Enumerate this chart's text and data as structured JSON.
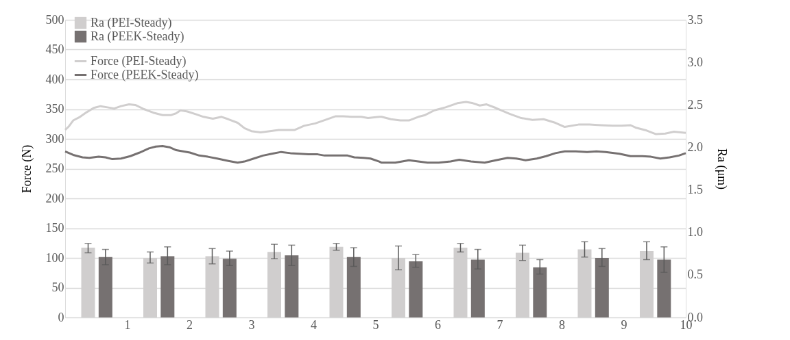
{
  "chart_data": {
    "type": "bar",
    "ylabel": "Force (N)",
    "y2label": "Ra (μm)",
    "xlim": [
      0,
      10
    ],
    "xticks": [
      1,
      2,
      3,
      4,
      5,
      6,
      7,
      8,
      9,
      10
    ],
    "ylim": [
      0,
      500
    ],
    "yticks": [
      0,
      50,
      100,
      150,
      200,
      250,
      300,
      350,
      400,
      450,
      500
    ],
    "y2lim": [
      0,
      3.5
    ],
    "y2ticks": [
      {
        "value": 0,
        "label": "0.0"
      },
      0.5,
      {
        "value": 1,
        "label": "1.0"
      },
      1.5,
      {
        "value": 2,
        "label": "2.0"
      },
      2.5,
      {
        "value": 3,
        "label": "3.0"
      },
      3.5
    ],
    "grid": "y",
    "legend": "top left",
    "series": [
      {
        "name": "Ra (PEI-Steady)",
        "axis": "y2",
        "color": "#d0cece",
        "x": [
          0.37,
          1.37,
          2.37,
          3.37,
          4.37,
          5.37,
          6.37,
          7.37,
          8.37,
          9.37
        ],
        "values": [
          0.82,
          0.7,
          0.72,
          0.77,
          0.83,
          0.7,
          0.82,
          0.76,
          0.8,
          0.78
        ],
        "errors": [
          [
            0.76,
            0.87
          ],
          [
            0.64,
            0.77
          ],
          [
            0.63,
            0.81
          ],
          [
            0.69,
            0.86
          ],
          [
            0.79,
            0.87
          ],
          [
            0.56,
            0.84
          ],
          [
            0.77,
            0.87
          ],
          [
            0.67,
            0.85
          ],
          [
            0.71,
            0.89
          ],
          [
            0.68,
            0.89
          ]
        ]
      },
      {
        "name": "Ra (PEEK-Steady)",
        "axis": "y2",
        "color": "#767171",
        "x": [
          0.65,
          1.65,
          2.65,
          3.65,
          4.65,
          5.65,
          6.65,
          7.65,
          8.65,
          9.65
        ],
        "values": [
          0.71,
          0.72,
          0.69,
          0.73,
          0.71,
          0.66,
          0.68,
          0.59,
          0.7,
          0.68
        ],
        "errors": [
          [
            0.62,
            0.8
          ],
          [
            0.62,
            0.83
          ],
          [
            0.61,
            0.78
          ],
          [
            0.61,
            0.85
          ],
          [
            0.6,
            0.82
          ],
          [
            0.59,
            0.74
          ],
          [
            0.57,
            0.8
          ],
          [
            0.51,
            0.68
          ],
          [
            0.6,
            0.81
          ],
          [
            0.53,
            0.83
          ]
        ]
      },
      {
        "name": "Force (PEI-Steady)",
        "type": "line",
        "color": "#d0cece",
        "x": [
          0,
          0.06,
          0.13,
          0.24,
          0.35,
          0.46,
          0.57,
          0.68,
          0.79,
          0.9,
          1.03,
          1.13,
          1.27,
          1.42,
          1.57,
          1.71,
          1.79,
          1.86,
          1.97,
          2.12,
          2.23,
          2.38,
          2.52,
          2.63,
          2.78,
          2.89,
          3.0,
          3.15,
          3.3,
          3.44,
          3.59,
          3.7,
          3.85,
          4.03,
          4.22,
          4.36,
          4.48,
          4.62,
          4.77,
          4.88,
          5.06,
          5.1,
          5.25,
          5.4,
          5.54,
          5.69,
          5.8,
          5.95,
          6.13,
          6.32,
          6.46,
          6.57,
          6.68,
          6.79,
          6.94,
          7.16,
          7.35,
          7.53,
          7.71,
          7.9,
          8.05,
          8.27,
          8.45,
          8.63,
          8.82,
          8.97,
          9.11,
          9.19,
          9.37,
          9.52,
          9.67,
          9.81,
          10
        ],
        "values": [
          315,
          321,
          331,
          337,
          345,
          352,
          355,
          353,
          351,
          355,
          358,
          357,
          350,
          344,
          340,
          340,
          343,
          348,
          346,
          341,
          337,
          334,
          337,
          333,
          327,
          318,
          313,
          311,
          313,
          315,
          315,
          315,
          322,
          326,
          333,
          338,
          338,
          337,
          337,
          335,
          337,
          337,
          333,
          331,
          331,
          337,
          340,
          348,
          353,
          360,
          362,
          360,
          356,
          358,
          352,
          342,
          335,
          332,
          333,
          327,
          320,
          324,
          324,
          323,
          322,
          322,
          323,
          319,
          314,
          308,
          309,
          312,
          310
        ]
      },
      {
        "name": "Force (PEEK-Steady)",
        "type": "line",
        "color": "#767171",
        "x": [
          0,
          0.13,
          0.28,
          0.39,
          0.54,
          0.65,
          0.76,
          0.9,
          1.05,
          1.2,
          1.35,
          1.46,
          1.57,
          1.68,
          1.79,
          1.9,
          2.01,
          2.16,
          2.3,
          2.45,
          2.63,
          2.78,
          2.89,
          3.04,
          3.19,
          3.33,
          3.48,
          3.63,
          3.78,
          3.92,
          4.07,
          4.18,
          4.33,
          4.48,
          4.55,
          4.66,
          4.81,
          4.92,
          5.06,
          5.1,
          5.32,
          5.54,
          5.69,
          5.84,
          6.02,
          6.21,
          6.35,
          6.54,
          6.76,
          6.94,
          7.13,
          7.27,
          7.42,
          7.6,
          7.75,
          7.9,
          8.05,
          8.23,
          8.41,
          8.56,
          8.71,
          8.93,
          9.11,
          9.3,
          9.44,
          9.59,
          9.74,
          9.89,
          10
        ],
        "values": [
          279,
          273,
          269,
          268,
          270,
          269,
          266,
          267,
          271,
          277,
          284,
          287,
          288,
          286,
          281,
          279,
          277,
          272,
          270,
          267,
          263,
          260,
          262,
          267,
          272,
          275,
          278,
          276,
          275,
          274,
          274,
          272,
          272,
          272,
          272,
          269,
          268,
          267,
          262,
          260,
          260,
          264,
          262,
          260,
          260,
          262,
          265,
          262,
          260,
          264,
          268,
          267,
          264,
          267,
          271,
          276,
          279,
          279,
          278,
          279,
          278,
          275,
          271,
          271,
          270,
          267,
          269,
          272,
          276
        ]
      }
    ]
  }
}
